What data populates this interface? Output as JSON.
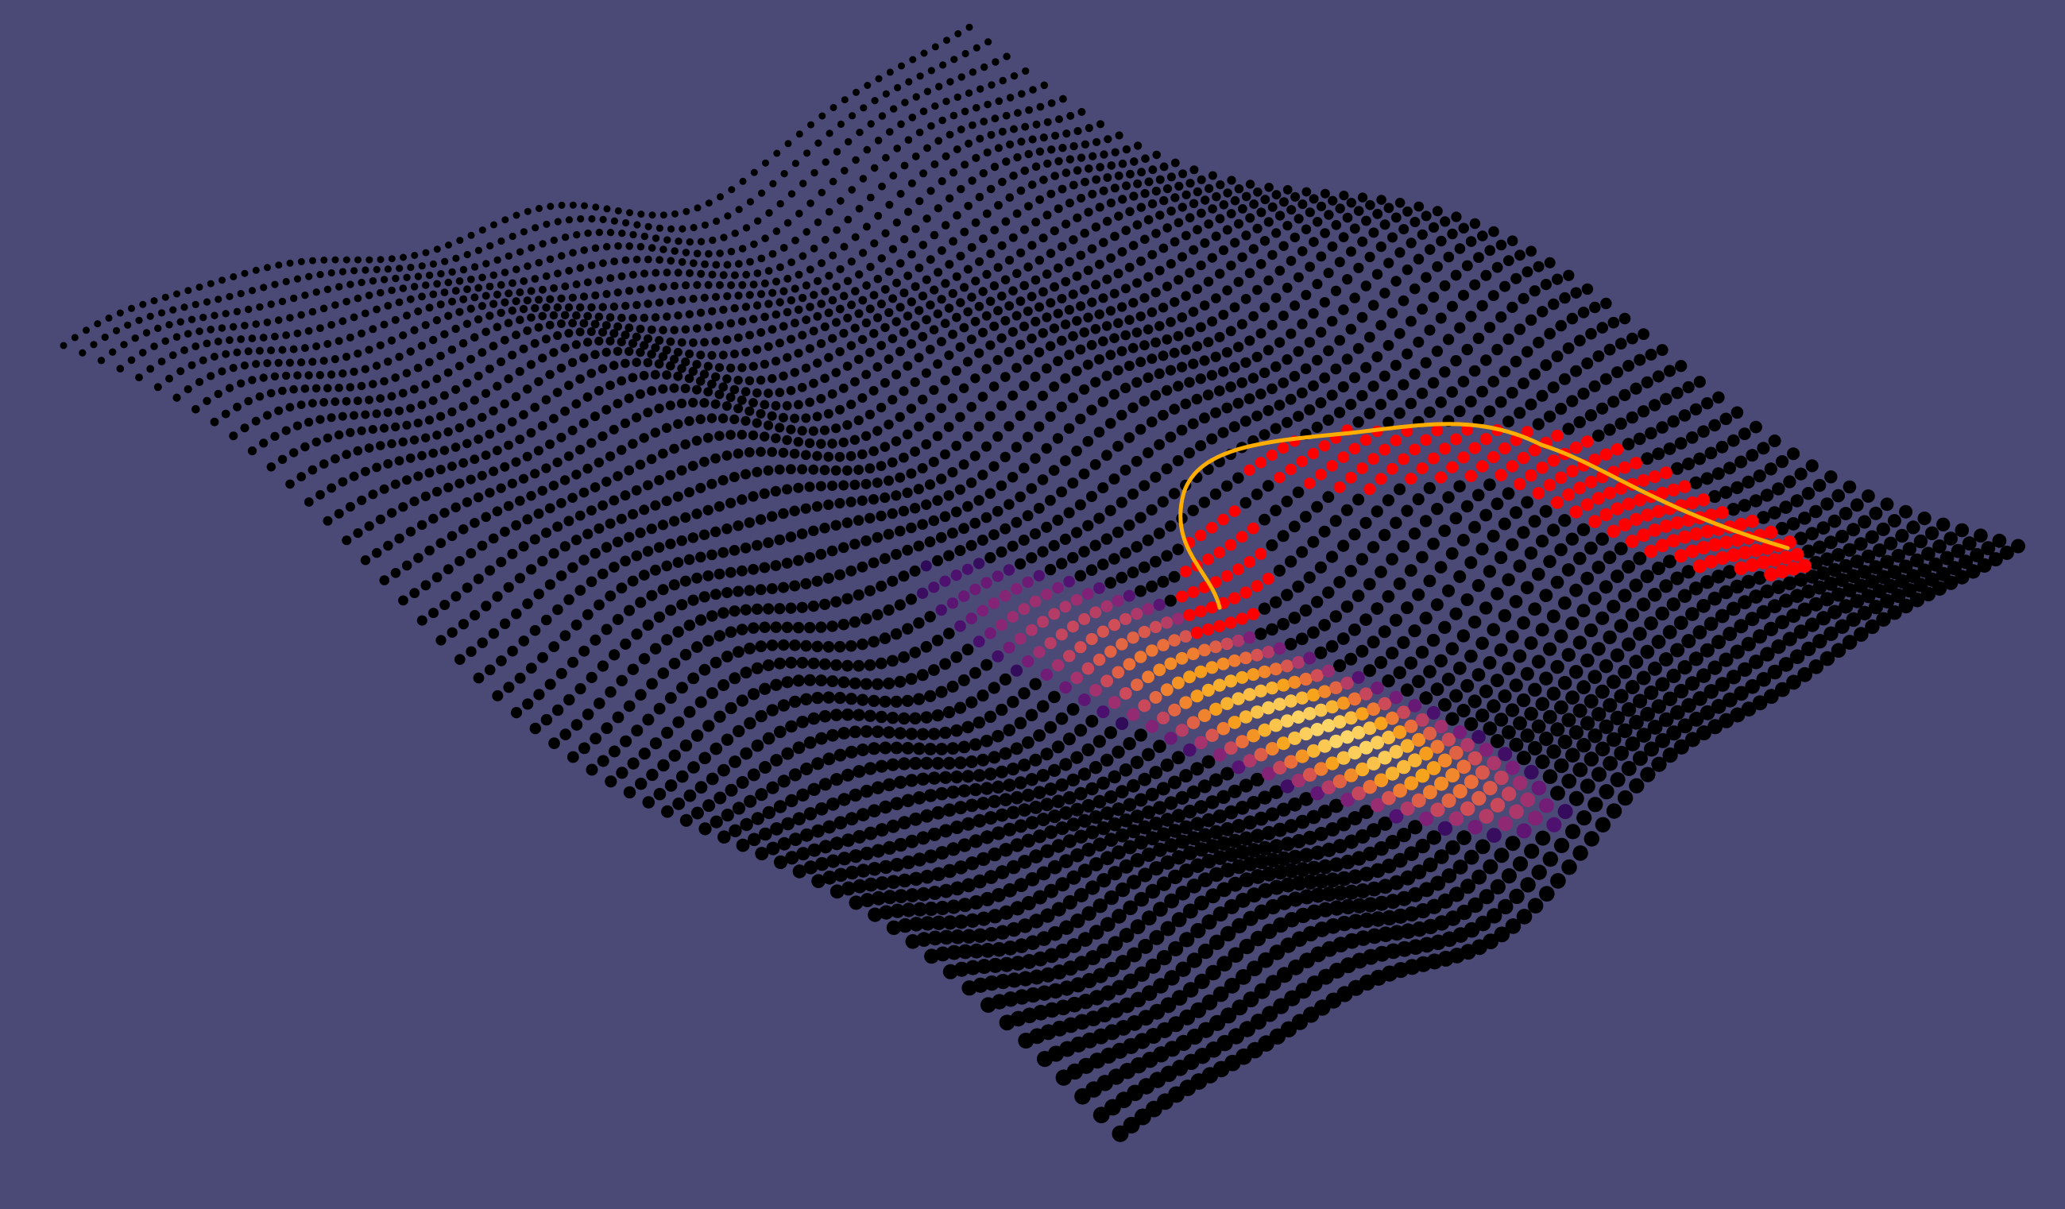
{
  "scene": {
    "background_color": "#4b4a76",
    "terrain_point_color": "#000000",
    "selected_region_color": "#ff0000",
    "path_line_color": "#ffae00",
    "heatmap_colormap": [
      "#2a0a55",
      "#4e1170",
      "#7b1f78",
      "#a8356d",
      "#d04d57",
      "#ec7238",
      "#f7a31b",
      "#fcd76a",
      "#fcf8b4"
    ]
  }
}
